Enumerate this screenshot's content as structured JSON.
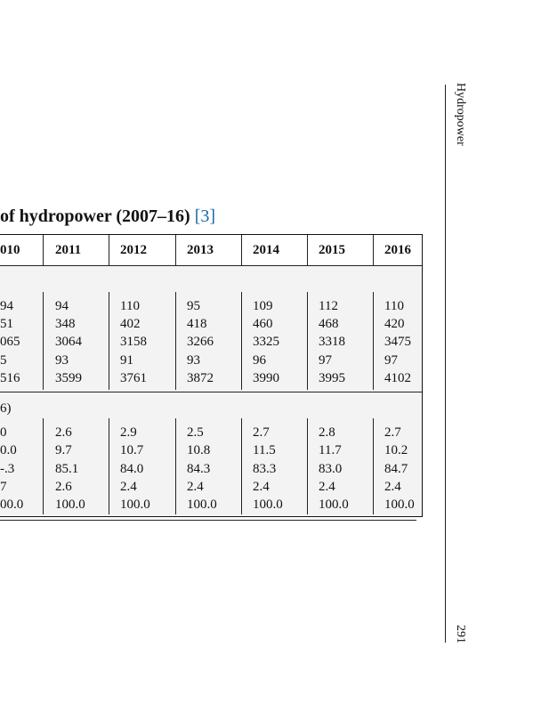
{
  "running_head": "Hydropower",
  "page_number": "291",
  "title": {
    "text": "of hydropower (2007–16)",
    "ref": "[3]"
  },
  "table": {
    "columns": [
      "010",
      "2011",
      "2012",
      "2013",
      "2014",
      "2015",
      "2016"
    ],
    "section_label": "6)",
    "rows_a": [
      [
        "94",
        "94",
        "110",
        "95",
        "109",
        "112",
        "110"
      ],
      [
        "51",
        "348",
        "402",
        "418",
        "460",
        "468",
        "420"
      ],
      [
        "065",
        "3064",
        "3158",
        "3266",
        "3325",
        "3318",
        "3475"
      ],
      [
        "5",
        "93",
        "91",
        "93",
        "96",
        "97",
        "97"
      ],
      [
        "516",
        "3599",
        "3761",
        "3872",
        "3990",
        "3995",
        "4102"
      ]
    ],
    "rows_b": [
      [
        "0",
        "2.6",
        "2.9",
        "2.5",
        "2.7",
        "2.8",
        "2.7"
      ],
      [
        "0.0",
        "9.7",
        "10.7",
        "10.8",
        "11.5",
        "11.7",
        "10.2"
      ],
      [
        "-.3",
        "85.1",
        "84.0",
        "84.3",
        "83.3",
        "83.0",
        "84.7"
      ],
      [
        "7",
        "2.6",
        "2.4",
        "2.4",
        "2.4",
        "2.4",
        "2.4"
      ],
      [
        "00.0",
        "100.0",
        "100.0",
        "100.0",
        "100.0",
        "100.0",
        "100.0"
      ]
    ]
  }
}
